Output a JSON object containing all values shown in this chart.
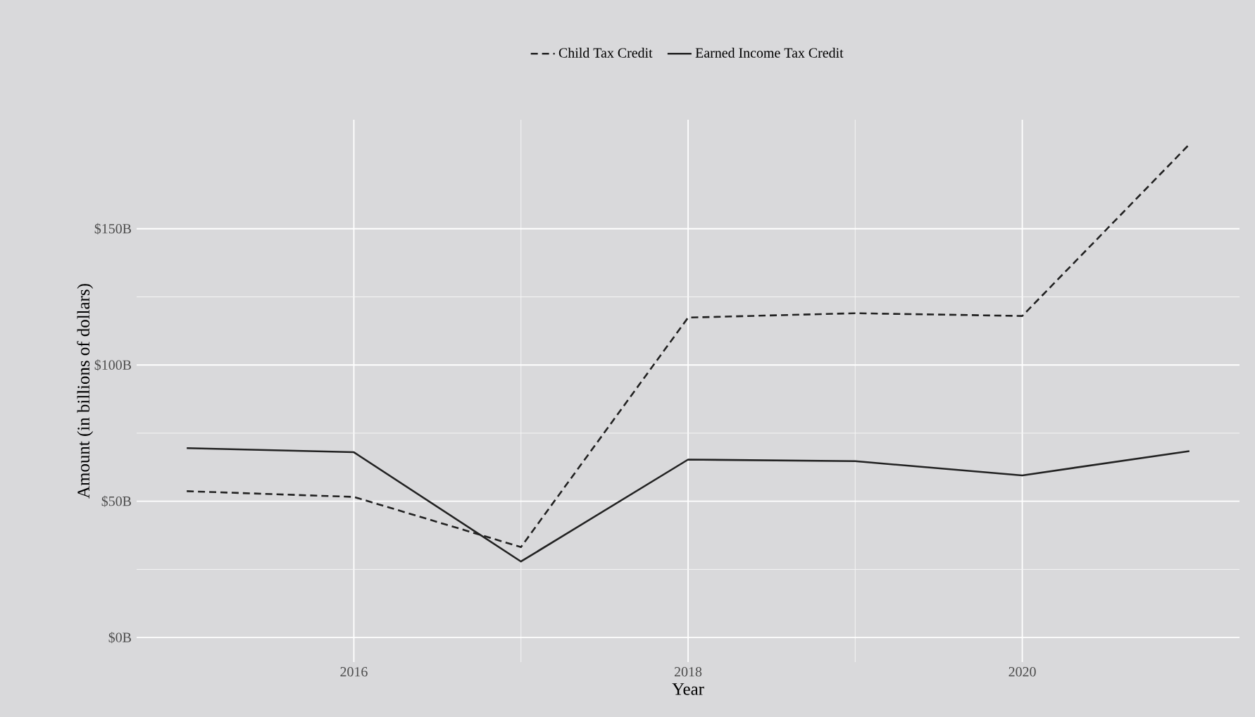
{
  "chart_data": {
    "type": "line",
    "xlabel": "Year",
    "ylabel": "Amount (in billions of dollars)",
    "x": [
      2015,
      2016,
      2017,
      2018,
      2019,
      2020,
      2021
    ],
    "series": [
      {
        "name": "Child Tax Credit",
        "color": "#222222",
        "line_style": "dashed",
        "values": [
          53.7,
          51.6,
          33.2,
          117.4,
          119,
          118,
          181
        ]
      },
      {
        "name": "Earned Income Tax Credit",
        "color": "#222222",
        "line_style": "solid",
        "values": [
          69.5,
          68,
          27.9,
          65.3,
          64.7,
          59.5,
          68.4
        ]
      }
    ],
    "xlim": [
      2014.7,
      2021.3
    ],
    "ylim": [
      -9,
      190
    ],
    "xticks": [
      2016,
      2018,
      2020
    ],
    "yticks": [
      {
        "value": 0,
        "label": "$0B"
      },
      {
        "value": 50,
        "label": "$50B"
      },
      {
        "value": 100,
        "label": "$100B"
      },
      {
        "value": 150,
        "label": "$150B"
      }
    ],
    "grid": true,
    "legend": "top",
    "marker": "none"
  }
}
